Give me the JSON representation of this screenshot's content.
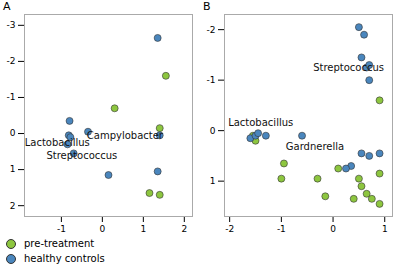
{
  "chart_data": [
    {
      "type": "scatter",
      "title": "A",
      "xlim": [
        -1.9,
        2.2
      ],
      "xticks": [
        -1,
        0,
        1,
        2
      ],
      "ylim": [
        2.3,
        -3.3
      ],
      "yticks": [
        -3,
        -2,
        -1,
        0,
        1,
        2
      ],
      "grid": false,
      "legend": "bottom",
      "series": [
        {
          "name": "pre-treatment",
          "color": "#8dc63f",
          "x": [
            0.3,
            1.55,
            1.4,
            1.15,
            1.4
          ],
          "y": [
            -0.7,
            -1.6,
            -0.15,
            1.65,
            1.7
          ]
        },
        {
          "name": "healthy controls",
          "color": "#4a86bd",
          "x": [
            1.35,
            -0.8,
            -0.82,
            -0.78,
            -0.35,
            -0.85,
            -0.7,
            0.15,
            1.35,
            1.4
          ],
          "y": [
            -2.65,
            -0.35,
            0.05,
            0.1,
            -0.05,
            0.3,
            0.55,
            1.15,
            1.05,
            0.05
          ]
        }
      ],
      "annotations": [
        {
          "text": "Campylobacter",
          "x": 0.55,
          "y": 0.05
        },
        {
          "text": "Lactobacillus",
          "x": -1.1,
          "y": 0.25
        },
        {
          "text": "Streptococcus",
          "x": -0.5,
          "y": 0.62
        }
      ]
    },
    {
      "type": "scatter",
      "title": "B",
      "xlim": [
        -2.1,
        1.15
      ],
      "xticks": [
        -2,
        -1,
        0,
        1
      ],
      "ylim": [
        1.7,
        -2.3
      ],
      "yticks": [
        -2,
        -1,
        0,
        1
      ],
      "grid": false,
      "series": [
        {
          "name": "pre-treatment",
          "color": "#8dc63f",
          "x": [
            0.9,
            -1.55,
            -1.5,
            -0.95,
            -1.0,
            -0.3,
            0.1,
            0.5,
            0.55,
            0.65,
            0.75,
            0.9,
            0.9,
            0.4,
            -0.15
          ],
          "y": [
            -0.6,
            0.1,
            0.2,
            0.65,
            0.95,
            0.95,
            0.75,
            0.95,
            1.1,
            1.25,
            1.35,
            1.45,
            0.85,
            1.35,
            1.3
          ]
        },
        {
          "name": "healthy controls",
          "color": "#4a86bd",
          "x": [
            0.5,
            0.6,
            0.55,
            0.65,
            0.7,
            0.7,
            -1.6,
            -1.5,
            -1.45,
            -1.3,
            -0.6,
            0.35,
            0.55,
            0.7,
            0.9,
            0.25
          ],
          "y": [
            -2.05,
            -1.9,
            -1.45,
            -1.25,
            -1.3,
            -1.0,
            0.15,
            0.1,
            0.05,
            0.1,
            0.1,
            0.7,
            0.45,
            0.5,
            0.45,
            0.75
          ]
        }
      ],
      "annotations": [
        {
          "text": "Streptococcus",
          "x": 0.3,
          "y": -1.25
        },
        {
          "text": "Lactobacillus",
          "x": -1.4,
          "y": -0.15
        },
        {
          "text": "Gardnerella",
          "x": -0.35,
          "y": 0.32
        }
      ]
    }
  ]
}
